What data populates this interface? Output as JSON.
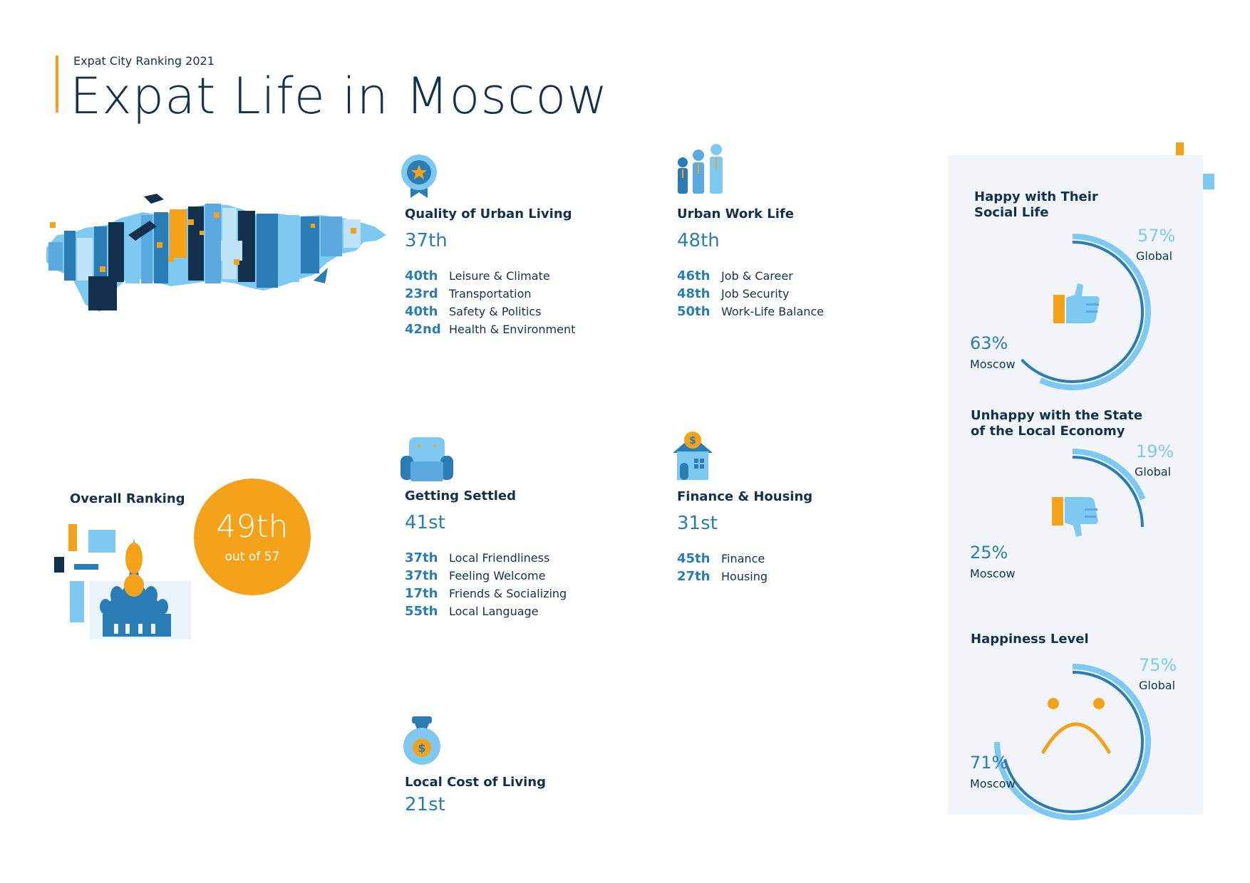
{
  "header": {
    "kicker": "Expat City Ranking 2021",
    "title": "Expat Life in Moscow"
  },
  "categories": [
    {
      "id": "quality-of-urban-living",
      "icon": "medal-icon",
      "title": "Quality of Urban Living",
      "rank": "37th",
      "items": [
        {
          "rank": "40th",
          "label": "Leisure & Climate"
        },
        {
          "rank": "23rd",
          "label": "Transportation"
        },
        {
          "rank": "40th",
          "label": "Safety & Politics"
        },
        {
          "rank": "42nd",
          "label": "Health & Environment"
        }
      ]
    },
    {
      "id": "urban-work-life",
      "icon": "workers-icon",
      "title": "Urban Work Life",
      "rank": "48th",
      "items": [
        {
          "rank": "46th",
          "label": "Job & Career"
        },
        {
          "rank": "48th",
          "label": "Job Security"
        },
        {
          "rank": "50th",
          "label": "Work-Life Balance"
        }
      ]
    },
    {
      "id": "getting-settled",
      "icon": "armchair-icon",
      "title": "Getting Settled",
      "rank": "41st",
      "items": [
        {
          "rank": "37th",
          "label": "Local Friendliness"
        },
        {
          "rank": "37th",
          "label": "Feeling Welcome"
        },
        {
          "rank": "17th",
          "label": "Friends & Socializing"
        },
        {
          "rank": "55th",
          "label": "Local Language"
        }
      ]
    },
    {
      "id": "finance-housing",
      "icon": "house-coin-icon",
      "title": "Finance & Housing",
      "rank": "31st",
      "items": [
        {
          "rank": "45th",
          "label": "Finance"
        },
        {
          "rank": "27th",
          "label": "Housing"
        }
      ]
    },
    {
      "id": "local-cost-of-living",
      "icon": "money-bag-icon",
      "title": "Local Cost of Living",
      "rank": "21st",
      "items": []
    }
  ],
  "overall": {
    "title": "Overall Ranking",
    "rank": "49th",
    "out_of": "out of 57"
  },
  "gauges": [
    {
      "id": "social-life",
      "title_line1": "Happy with Their",
      "title_line2": "Social Life",
      "icon": "thumbs-up-icon",
      "global_value": "57%",
      "global_label": "Global",
      "moscow_value": "63%",
      "moscow_label": "Moscow",
      "global_fraction": 0.57,
      "moscow_fraction": 0.63
    },
    {
      "id": "local-economy",
      "title_line1": "Unhappy with the State",
      "title_line2": "of the Local Economy",
      "icon": "thumbs-down-icon",
      "global_value": "19%",
      "global_label": "Global",
      "moscow_value": "25%",
      "moscow_label": "Moscow",
      "global_fraction": 0.19,
      "moscow_fraction": 0.25
    },
    {
      "id": "happiness-level",
      "title_line1": "Happiness Level",
      "title_line2": "",
      "icon": "sad-face-icon",
      "global_value": "75%",
      "global_label": "Global",
      "moscow_value": "71%",
      "moscow_label": "Moscow",
      "global_fraction": 0.75,
      "moscow_fraction": 0.71
    }
  ],
  "colors": {
    "navy": "#13314d",
    "blue": "#2a7cb5",
    "light_blue": "#7ec9f2",
    "orange": "#f5a21b",
    "panel": "#f1f5f9"
  }
}
